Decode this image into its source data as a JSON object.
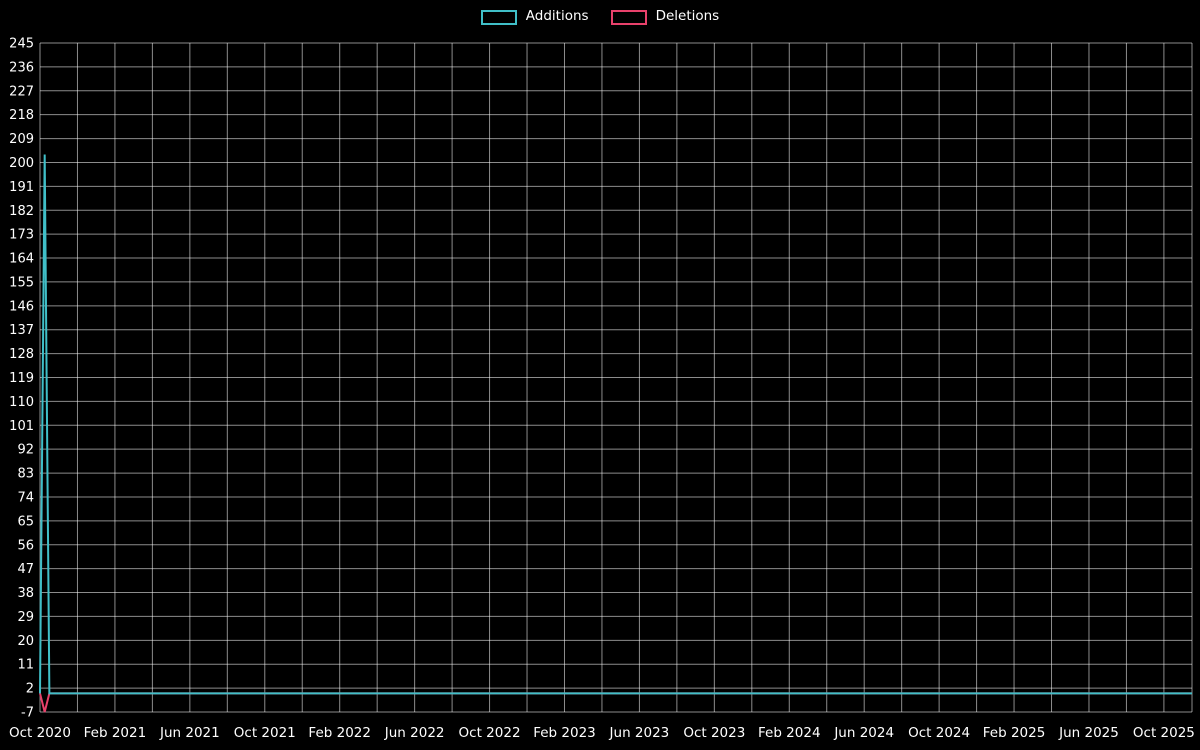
{
  "chart_data": {
    "type": "line",
    "title": "",
    "legend_position": "top-center",
    "grid": true,
    "background_color": "#000000",
    "text_color": "#ffffff",
    "grid_color": "rgba(255,255,255,0.55)",
    "legend": [
      {
        "label": "Additions",
        "color": "#40bfc8"
      },
      {
        "label": "Deletions",
        "color": "#e8416b"
      }
    ],
    "x_unit": "months since Oct 2020",
    "xlim": [
      0,
      61.5
    ],
    "ylim": [
      -7,
      245
    ],
    "grid_x_step_months": 2,
    "x_ticks": [
      {
        "pos": 0,
        "label": "Oct 2020"
      },
      {
        "pos": 4,
        "label": "Feb 2021"
      },
      {
        "pos": 8,
        "label": "Jun 2021"
      },
      {
        "pos": 12,
        "label": "Oct 2021"
      },
      {
        "pos": 16,
        "label": "Feb 2022"
      },
      {
        "pos": 20,
        "label": "Jun 2022"
      },
      {
        "pos": 24,
        "label": "Oct 2022"
      },
      {
        "pos": 28,
        "label": "Feb 2023"
      },
      {
        "pos": 32,
        "label": "Jun 2023"
      },
      {
        "pos": 36,
        "label": "Oct 2023"
      },
      {
        "pos": 40,
        "label": "Feb 2024"
      },
      {
        "pos": 44,
        "label": "Jun 2024"
      },
      {
        "pos": 48,
        "label": "Oct 2024"
      },
      {
        "pos": 52,
        "label": "Feb 2025"
      },
      {
        "pos": 56,
        "label": "Jun 2025"
      },
      {
        "pos": 60,
        "label": "Oct 2025"
      }
    ],
    "y_ticks": [
      245,
      236,
      227,
      218,
      209,
      200,
      191,
      182,
      173,
      164,
      155,
      146,
      137,
      128,
      119,
      110,
      101,
      92,
      83,
      74,
      65,
      56,
      47,
      38,
      29,
      20,
      11,
      2,
      -7
    ],
    "series": [
      {
        "name": "Deletions",
        "color": "#e8416b",
        "points": [
          [
            0,
            0
          ],
          [
            0.25,
            -7
          ],
          [
            0.5,
            0
          ],
          [
            61.5,
            0
          ]
        ]
      },
      {
        "name": "Additions",
        "color": "#40bfc8",
        "points": [
          [
            0,
            0
          ],
          [
            0.25,
            203
          ],
          [
            0.5,
            0
          ],
          [
            61.5,
            0
          ]
        ]
      }
    ]
  }
}
